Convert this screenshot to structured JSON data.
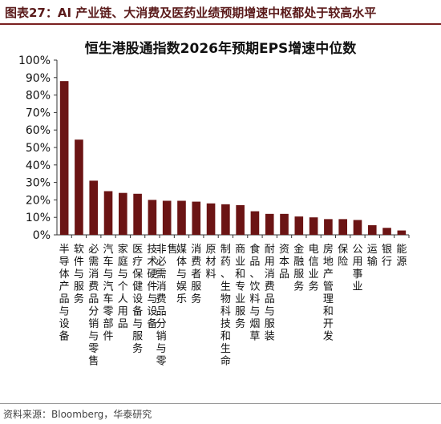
{
  "header": {
    "title": "图表27：AI 产业链、大消费及医药业绩预期增速中枢都处于较高水平"
  },
  "chart_data": {
    "type": "bar",
    "title": "恒生港股通指数2026年预期EPS增速中位数",
    "categories": [
      "半导体产品与设备",
      "软件与服务",
      "必需消费品分销与零售",
      "汽车与汽车零部件",
      "家庭与个人用品",
      "医疗保健设备与服务",
      "技术硬件与设备",
      "非必需消费品分销与零售",
      "媒体与娱乐",
      "消费者服务",
      "原材料",
      "制药、生物科技和生命",
      "商业和专业服务",
      "食品、饮料与烟草",
      "耐用消费品与服装",
      "资本品",
      "金融服务",
      "电信业务",
      "房地产管理和开发",
      "保险",
      "公用事业",
      "运输",
      "银行",
      "能源"
    ],
    "values": [
      88,
      54.5,
      31,
      25,
      24,
      23.5,
      20,
      19.5,
      19.5,
      19,
      18,
      17.5,
      17,
      13.5,
      12,
      12,
      10.5,
      10,
      9,
      9,
      8.5,
      5.5,
      4,
      2.5
    ],
    "ylim": [
      0,
      100
    ],
    "yticks": [
      "0%",
      "10%",
      "20%",
      "30%",
      "40%",
      "50%",
      "60%",
      "70%",
      "80%",
      "90%",
      "100%"
    ],
    "bar_color": "#6b1414",
    "grid": false,
    "xlabel": "",
    "ylabel": ""
  },
  "source": "资料来源：Bloomberg，华泰研究"
}
